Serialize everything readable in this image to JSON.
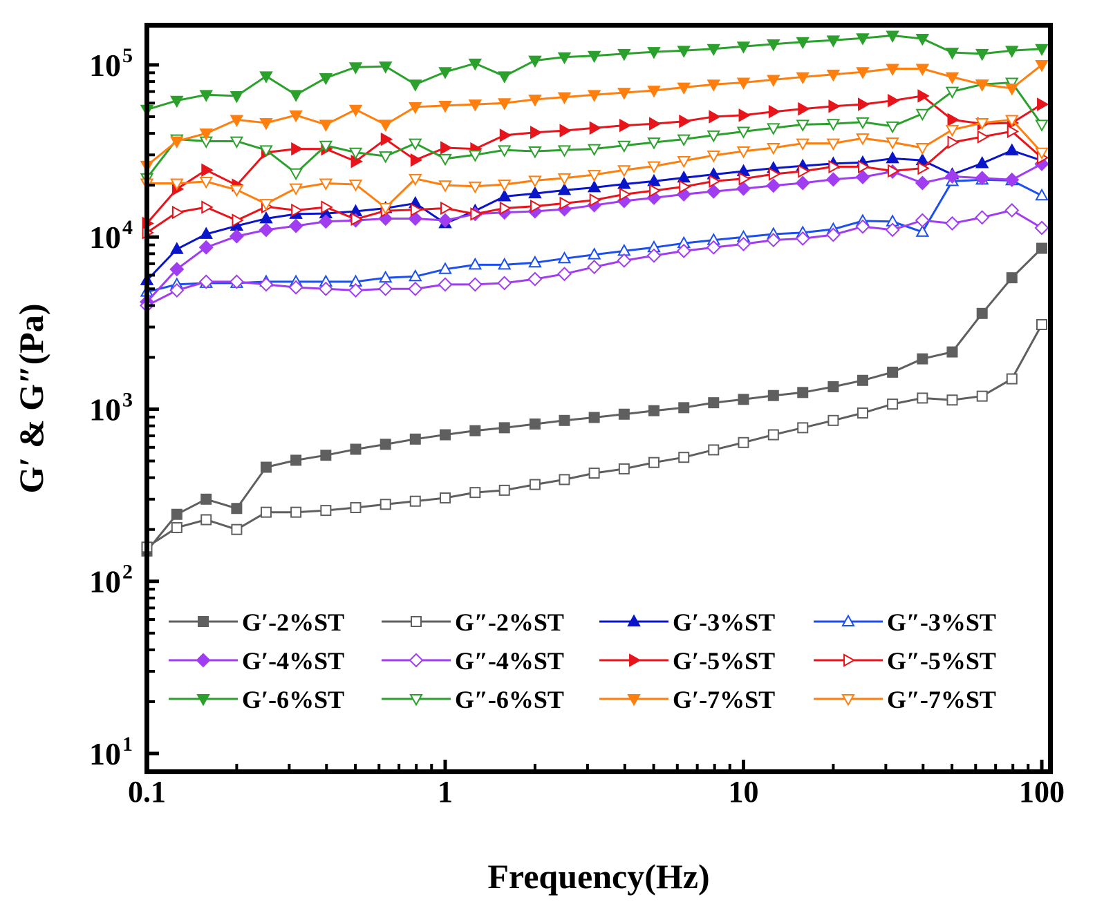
{
  "chart_data": {
    "type": "line",
    "xlabel": "Frequency(Hz)",
    "ylabel": "G′ & G″(Pa)",
    "xscale": "log",
    "yscale": "log",
    "xlim": [
      0.1,
      100
    ],
    "ylim": [
      10,
      170000
    ],
    "xticks": [
      {
        "value": 0.1,
        "label": "0.1"
      },
      {
        "value": 1,
        "label": "1"
      },
      {
        "value": 10,
        "label": "10"
      },
      {
        "value": 100,
        "label": "100"
      }
    ],
    "yticks": [
      {
        "value": 10,
        "base": "10",
        "exp": "1"
      },
      {
        "value": 100,
        "base": "10",
        "exp": "2"
      },
      {
        "value": 1000,
        "base": "10",
        "exp": "3"
      },
      {
        "value": 10000,
        "base": "10",
        "exp": "4"
      },
      {
        "value": 100000,
        "base": "10",
        "exp": "5"
      }
    ],
    "grid": false,
    "legend_position": "bottom",
    "x": [
      0.1,
      0.126,
      0.158,
      0.2,
      0.251,
      0.316,
      0.398,
      0.501,
      0.631,
      0.794,
      1,
      1.26,
      1.58,
      2,
      2.51,
      3.16,
      3.98,
      5.01,
      6.31,
      7.94,
      10,
      12.6,
      15.8,
      20,
      25.1,
      31.6,
      39.8,
      50.1,
      63.1,
      79.4,
      100
    ],
    "series": [
      {
        "name": "G′-2%ST",
        "color": "#5f5f5f",
        "marker": "square",
        "filled": true,
        "values": [
          150,
          245,
          300,
          265,
          460,
          505,
          540,
          585,
          625,
          670,
          710,
          750,
          780,
          820,
          860,
          895,
          935,
          980,
          1020,
          1090,
          1140,
          1200,
          1250,
          1350,
          1470,
          1640,
          1960,
          2150,
          3600,
          5800,
          8600
        ]
      },
      {
        "name": "G″-2%ST",
        "color": "#5f5f5f",
        "marker": "square",
        "filled": false,
        "values": [
          158,
          205,
          228,
          200,
          252,
          252,
          258,
          268,
          280,
          292,
          305,
          328,
          338,
          365,
          390,
          425,
          450,
          490,
          525,
          580,
          640,
          710,
          780,
          860,
          950,
          1070,
          1160,
          1130,
          1190,
          1500,
          3100
        ]
      },
      {
        "name": "G′-3%ST",
        "color": "#0a14c8",
        "marker": "triangle-up",
        "filled": true,
        "values": [
          5600,
          8500,
          10400,
          11600,
          12800,
          13600,
          13700,
          14100,
          14700,
          15700,
          12000,
          14200,
          17200,
          17900,
          18700,
          19400,
          20300,
          21100,
          22100,
          23100,
          24100,
          25100,
          25900,
          26700,
          27100,
          28600,
          27900,
          23100,
          26800,
          31800,
          27800
        ]
      },
      {
        "name": "G″-3%ST",
        "color": "#1c4ff0",
        "marker": "triangle-up",
        "filled": false,
        "values": [
          4800,
          5300,
          5400,
          5400,
          5500,
          5500,
          5500,
          5500,
          5800,
          5900,
          6500,
          6900,
          6900,
          7100,
          7500,
          7900,
          8300,
          8700,
          9200,
          9600,
          10000,
          10400,
          10600,
          11100,
          12400,
          12300,
          10700,
          21100,
          21500,
          21300,
          17400
        ]
      },
      {
        "name": "G′-4%ST",
        "color": "#a03df0",
        "marker": "diamond",
        "filled": true,
        "values": [
          4200,
          6500,
          8700,
          10100,
          11000,
          11600,
          12300,
          12500,
          12800,
          12800,
          12500,
          13600,
          13900,
          14100,
          14500,
          15300,
          16200,
          16900,
          17700,
          18400,
          19100,
          19900,
          20600,
          21600,
          22300,
          24000,
          20600,
          22500,
          22000,
          21500,
          26600
        ]
      },
      {
        "name": "G″-4%ST",
        "color": "#a03df0",
        "marker": "diamond",
        "filled": false,
        "values": [
          4000,
          4900,
          5500,
          5500,
          5300,
          5100,
          5000,
          4900,
          5000,
          5000,
          5300,
          5300,
          5400,
          5700,
          6100,
          6700,
          7300,
          7800,
          8300,
          8700,
          9100,
          9600,
          9800,
          10300,
          11500,
          11000,
          12500,
          12000,
          13000,
          14300,
          11300
        ]
      },
      {
        "name": "G′-5%ST",
        "color": "#e8141b",
        "marker": "triangle-right",
        "filled": true,
        "values": [
          12000,
          19000,
          24500,
          20000,
          31000,
          32500,
          32500,
          27500,
          37000,
          28000,
          33000,
          32500,
          39000,
          40500,
          41500,
          43000,
          44500,
          45500,
          47000,
          50000,
          51000,
          53500,
          55500,
          57500,
          59000,
          62000,
          66000,
          48000,
          45500,
          46000,
          59000
        ]
      },
      {
        "name": "G″-5%ST",
        "color": "#e8141b",
        "marker": "triangle-right",
        "filled": false,
        "values": [
          10600,
          13900,
          14900,
          12500,
          15000,
          14300,
          14900,
          12700,
          14200,
          14400,
          14700,
          13600,
          14700,
          15100,
          15700,
          16400,
          17700,
          18600,
          19600,
          21100,
          21800,
          23200,
          24100,
          25600,
          25600,
          24200,
          25100,
          35500,
          38200,
          41100,
          28900
        ]
      },
      {
        "name": "G′-6%ST",
        "color": "#2ca02c",
        "marker": "triangle-down",
        "filled": true,
        "values": [
          55000,
          62000,
          67000,
          66000,
          86000,
          67000,
          84000,
          97000,
          98000,
          77000,
          91000,
          102000,
          86000,
          106000,
          111000,
          113000,
          116000,
          119000,
          121000,
          124000,
          128000,
          132000,
          136000,
          139000,
          143000,
          148000,
          142000,
          118000,
          116000,
          121000,
          124000
        ]
      },
      {
        "name": "G″-6%ST",
        "color": "#2ca02c",
        "marker": "triangle-down",
        "filled": false,
        "values": [
          22000,
          37000,
          36000,
          36000,
          32000,
          23500,
          34000,
          31000,
          29500,
          35000,
          28500,
          30000,
          32000,
          31500,
          32000,
          32500,
          34000,
          35500,
          37000,
          39000,
          41000,
          43000,
          45000,
          45500,
          46500,
          44000,
          52000,
          70000,
          77000,
          79000,
          45000
        ]
      },
      {
        "name": "G′-7%ST",
        "color": "#ff7f0e",
        "marker": "triangle-down",
        "filled": true,
        "values": [
          26000,
          36000,
          40000,
          48000,
          46000,
          51000,
          45000,
          55000,
          45000,
          57000,
          58000,
          59000,
          60000,
          63000,
          65000,
          67000,
          69000,
          71000,
          74000,
          77000,
          79000,
          82000,
          85000,
          88000,
          91000,
          95000,
          95000,
          85000,
          77000,
          73000,
          100000
        ]
      },
      {
        "name": "G″-7%ST",
        "color": "#ff7f0e",
        "marker": "triangle-down",
        "filled": false,
        "values": [
          20500,
          20500,
          21000,
          18800,
          15600,
          19200,
          20500,
          20200,
          14800,
          21800,
          20000,
          19700,
          20200,
          21300,
          22000,
          23000,
          24500,
          25800,
          27700,
          29800,
          31500,
          33000,
          35000,
          35000,
          37500,
          35500,
          33000,
          42000,
          46000,
          48000,
          31000
        ]
      }
    ]
  }
}
